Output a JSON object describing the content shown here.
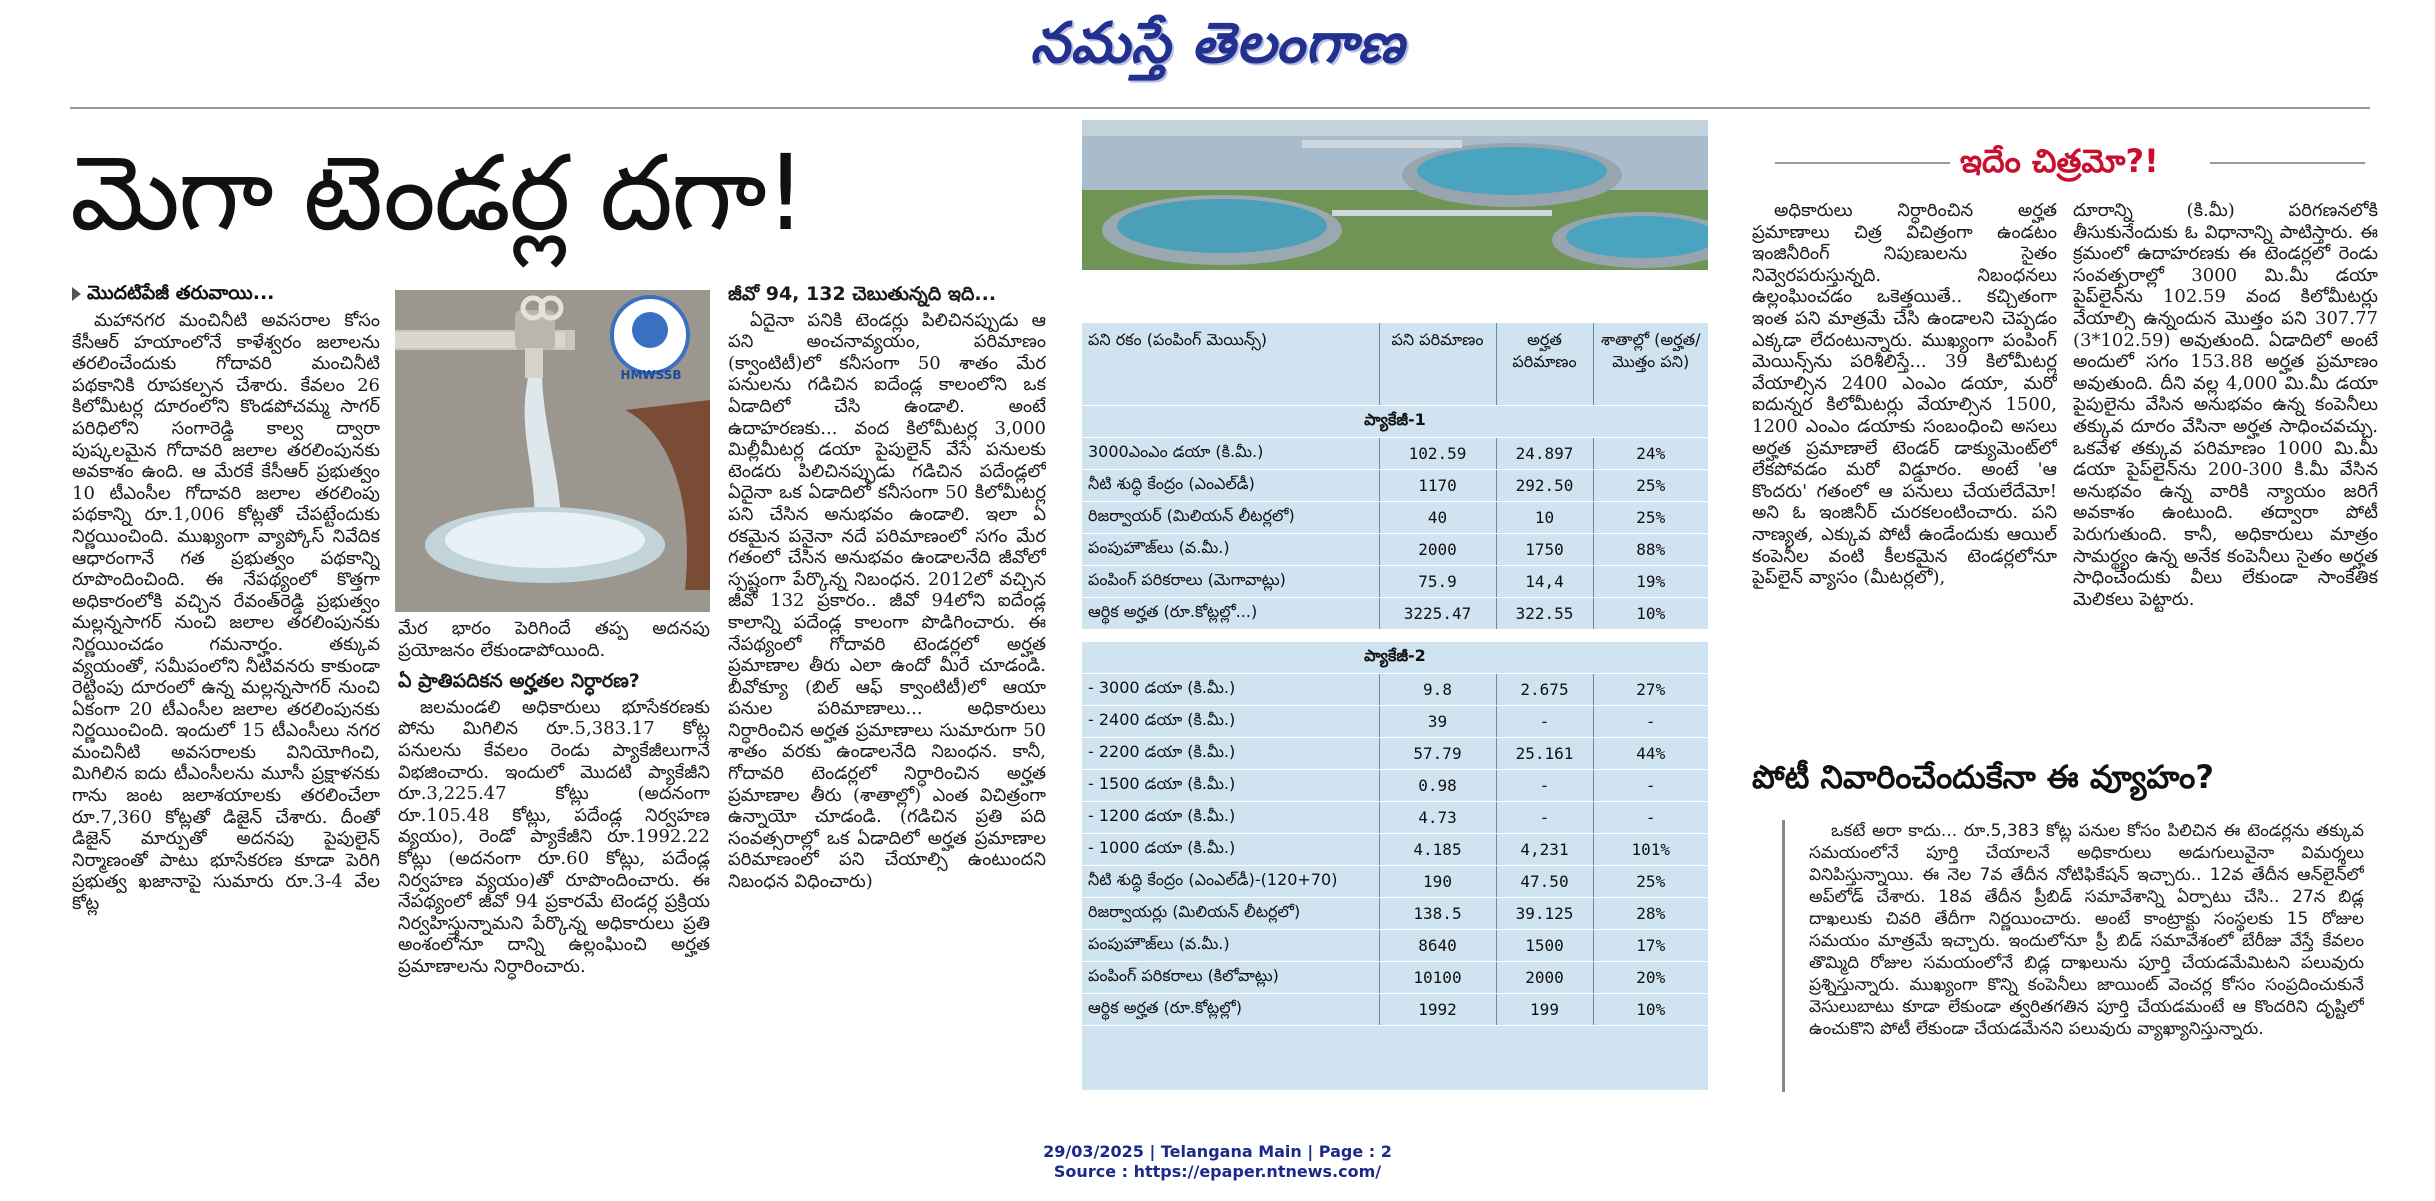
{
  "masthead": "నమస్తే తెలంగాణ",
  "headline": "మెగా టెండర్ల దగా!",
  "lead": {
    "subhead": "మొదటిపేజీ తరువాయి...",
    "col1": [
      "మహానగర మంచినీటి అవసరాల కోసం కేసీఆర్ హయాంలోనే కాళేశ్వరం జలాలను తరలించేందుకు గోదావరి మంచినీటి పథకానికి రూపకల్పన చేశారు. కేవలం 26 కిలోమీటర్ల దూరంలోని కొండపోచమ్మ సాగర్ పరిధిలోని సంగారెడ్డి కాల్వ ద్వారా పుష్కలమైన గోదావరి జలాల తరలింపునకు అవకాశం ఉంది. ఆ మేరకే కేసీఆర్ ప్రభుత్వం 10 టీఎంసీల గోదావరి జలాల తరలింపు పథకాన్ని రూ.1,006 కోట్లతో చేపట్టేందుకు నిర్ణయించింది. ముఖ్యంగా వ్యాప్కోస్ నివేదిక ఆధారంగానే గత ప్రభుత్వం పథకాన్ని రూపొందించింది. ఈ నేపథ్యంలో కొత్తగా అధికారంలోకి వచ్చిన రేవంత్‌రెడ్డి ప్రభుత్వం మల్లన్నసాగర్ నుంచి జలాల తరలింపునకు నిర్ణయించడం గమనార్హం. తక్కువ వ్యయంతో, సమీపంలోని నీటివనరు కాకుండా రెట్టింపు దూరంలో ఉన్న మల్లన్నసాగర్ నుంచి ఏకంగా 20 టీఎంసీల జలాల తరలింపునకు నిర్ణయించింది. ఇందులో 15 టీఎంసీలు నగర మంచినీటి అవసరాలకు వినియోగించి, మిగిలిన ఐదు టీఎంసీలను మూసీ ప్రక్షాళనకు గాను జంట జలాశయాలకు తరలించేలా రూ.7,360 కోట్లతో డిజైన్ చేశారు. దీంతో డిజైన్ మార్పుతో అదనపు పైపులైన్ నిర్మాణంతో పాటు భూసేకరణ కూడా పెరిగి ప్రభుత్వ ఖజానాపై సుమారు రూ.3-4 వేల కోట్ల"
    ],
    "photo_logo": "HMWSSB",
    "col2_top": "మేర భారం పెరిగిందే తప్ప అదనపు ప్రయోజనం లేకుండాపోయింది.",
    "col2_heading": "ఏ ప్రాతిపదికన అర్హతల నిర్ధారణ?",
    "col2_body": "జలమండలి అధికారులు భూసేకరణకు పోను మిగిలిన రూ.5,383.17 కోట్ల పనులను కేవలం రెండు ప్యాకేజీలుగానే విభజించారు. ఇందులో మొదటి ప్యాకేజీని రూ.3,225.47 కోట్లు (అదనంగా రూ.105.48 కోట్లు, పదేండ్ల నిర్వహణ వ్యయం), రెండో ప్యాకేజీని రూ.1992.22 కోట్లు (అదనంగా రూ.60 కోట్లు, పదేండ్ల నిర్వహణ వ్యయం)తో రూపొందించారు. ఈ నేపథ్యంలో జీవో 94 ప్రకారమే టెండర్ల ప్రక్రియ నిర్వహిస్తున్నామని పేర్కొన్న అధికారులు ప్రతి అంశంలోనూ దాన్ని ఉల్లంఘించి అర్హత ప్రమాణాలను నిర్ధారించారు.",
    "col3_heading": "జీవో 94, 132 చెబుతున్నది ఇది...",
    "col3_body": "ఏదైనా పనికి టెండర్లు పిలిచినప్పుడు ఆ పని అంచనావ్యయం, పరిమాణం (క్వాంటిటీ)లో కనీసంగా 50 శాతం మేర పనులను గడిచిన ఐదేండ్ల కాలంలోని ఒక ఏడాదిలో చేసి ఉండాలి. అంటే ఉదాహరణకు... వంద కిలోమీటర్ల 3,000 మిల్లీమీటర్ల డయా పైపులైన్ వేసే పనులకు టెండరు పిలిచినప్పుడు గడిచిన పదేండ్లలో ఏదైనా ఒక ఏడాదిలో కనీసంగా 50 కిలోమీటర్ల పని చేసిన అనుభవం ఉండాలి. ఇలా ఏ రకమైన పనైనా నదే పరిమాణంలో సగం మేర గతంలో చేసిన అనుభవం ఉండాలనేది జీవోలో స్పష్టంగా పేర్కొన్న నిబంధన. 2012లో వచ్చిన జీవో 132 ప్రకారం.. జీవో 94లోని ఐదేండ్ల కాలాన్ని పదేండ్ల కాలంగా పొడిగించారు. ఈ నేపథ్యంలో గోదావరి టెండర్లలో అర్హత ప్రమాణాల తీరు ఎలా ఉందో మీరే చూడండి. బీవోక్యూ (బిల్ ఆఫ్ క్వాంటిటీ)లో ఆయా పనుల పరిమాణాలు... అధికారులు నిర్ధారించిన అర్హత ప్రమాణాలు సుమారుగా 50 శాతం వరకు ఉండాలనేది నిబంధన. కానీ, గోదావరి టెండర్లలో నిర్ధారించిన అర్హత ప్రమాణాల తీరు (శాతాల్లో) ఎంత విచిత్రంగా ఉన్నాయో చూడండి. (గడిచిన ప్రతి పది సంవత్సరాల్లో ఒక ఏడాదిలో అర్హత ప్రమాణాల పరిమాణంలో పని చేయాల్సి ఉంటుందని నిబంధన విధించారు)"
  },
  "table": {
    "headers": [
      "పని రకం (పంపింగ్ మెయిన్స్)",
      "పని పరిమాణం",
      "అర్హత పరిమాణం",
      "శాతాల్లో (అర్హత/మొత్తం పని)"
    ],
    "package1": {
      "title": "ప్యాకేజీ-1",
      "rows": [
        [
          "3000ఎంఎం డయా (కి.మీ.)",
          "102.59",
          "24.897",
          "24%"
        ],
        [
          "నీటి శుద్ధి కేంద్రం (ఎంఎల్‌డీ)",
          "1170",
          "292.50",
          "25%"
        ],
        [
          "రిజర్వాయర్ (మిలియన్ లీటర్లలో)",
          "40",
          "10",
          "25%"
        ],
        [
          "పంపుహౌజ్‌లు (వ.మీ.)",
          "2000",
          "1750",
          "88%"
        ],
        [
          "పంపింగ్ పరికరాలు (మెగావాట్లు)",
          "75.9",
          "14,4",
          "19%"
        ],
        [
          "ఆర్థిక అర్హత (రూ.కోట్లల్లో...)",
          "3225.47",
          "322.55",
          "10%"
        ]
      ]
    },
    "package2": {
      "title": "ప్యాకేజీ-2",
      "rows": [
        [
          "- 3000 డయా (కి.మీ.)",
          "9.8",
          "2.675",
          "27%"
        ],
        [
          "- 2400 డయా (కి.మీ.)",
          "39",
          "-",
          "-"
        ],
        [
          "- 2200 డయా (కి.మీ.)",
          "57.79",
          "25.161",
          "44%"
        ],
        [
          "- 1500 డయా (కి.మీ.)",
          "0.98",
          "-",
          "-"
        ],
        [
          "- 1200 డయా (కి.మీ.)",
          "4.73",
          "-",
          "-"
        ],
        [
          "- 1000 డయా (కి.మీ.)",
          "4.185",
          "4,231",
          "101%"
        ],
        [
          "నీటి శుద్ధి కేంద్రం (ఎంఎల్‌డీ)-(120+70)",
          "190",
          "47.50",
          "25%"
        ],
        [
          "రిజర్వాయర్లు (మిలియన్ లీటర్లలో)",
          "138.5",
          "39.125",
          "28%"
        ],
        [
          "పంపుహౌజ్‌లు (వ.మీ.)",
          "8640",
          "1500",
          "17%"
        ],
        [
          "పంపింగ్ పరికరాలు (కిలోవాట్లు)",
          "10100",
          "2000",
          "20%"
        ],
        [
          "ఆర్థిక అర్హత (రూ.కోట్లల్లో)",
          "1992",
          "199",
          "10%"
        ]
      ]
    }
  },
  "sidebar": {
    "title": "ఇదేం చిత్రమో?!",
    "col1": "అధికారులు నిర్ధారించిన అర్హత ప్రమాణాలు చిత్ర విచిత్రంగా ఉండటం ఇంజినీరింగ్ నిపుణులను సైతం నివ్వెరపరుస్తున్నది. నిబంధనలు ఉల్లంఘించడం ఒకెత్తయితే.. కచ్చితంగా ఇంత పని మాత్రమే చేసి ఉండాలని చెప్పడం ఎక్కడా లేదంటున్నారు. ముఖ్యంగా పంపింగ్ మెయిన్స్‌ను పరిశీలిస్తే... 39 కిలోమీటర్ల వేయాల్సిన 2400 ఎంఎం డయా, మరో ఐదున్నర కిలోమీటర్లు వేయాల్సిన 1500, 1200 ఎంఎం డయాకు సంబంధించి అసలు అర్హత ప్రమాణాలే టెండర్ డాక్యుమెంట్‌లో లేకపోవడం మరో విడ్డూరం. అంటే 'ఆ కొందరు' గతంలో ఆ పనులు చేయలేదేమో! అని ఓ ఇంజినీర్ చురకలంటించారు. పని నాణ్యత, ఎక్కువ పోటీ ఉండేందుకు ఆయిల్ కంపెనీల వంటి కీలకమైన టెండర్లలోనూ పైప్‌లైన్ వ్యాసం (మీటర్లలో),",
    "col2": "దూరాన్ని (కి.మీ) పరిగణనలోకి తీసుకునేందుకు ఓ విధానాన్ని పాటిస్తారు. ఈ క్రమంలో ఉదాహరణకు ఈ టెండర్లలో రెండు సంవత్సరాల్లో 3000 మి.మీ డయా పైప్‌లైన్‌ను 102.59 వంద కిలోమీటర్లు వేయాల్సి ఉన్నందున మొత్తం పని 307.77 (3*102.59) అవుతుంది. ఏడాదిలో అంటే అందులో సగం 153.88 అర్హత ప్రమాణం అవుతుంది. దీని వల్ల 4,000 మి.మీ డయా పైపులైను వేసిన అనుభవం ఉన్న కంపెనీలు తక్కువ దూరం వేసినా అర్హత సాధించవచ్చు. ఒకవేళ తక్కువ పరిమాణం 1000 మి.మీ డయా పైప్‌లైన్‌ను 200-300 కి.మీ వేసిన అనుభవం ఉన్న వారికి న్యాయం జరిగే అవకాశం ఉంటుంది. తద్వారా పోటీ పెరుగుతుంది. కానీ, అధికారులు మాత్రం సామర్థ్యం ఉన్న అనేక కంపెనీలు సైతం అర్హత సాధించేందుకు వీలు లేకుండా సాంకేతిక మెలికలు పెట్టారు."
  },
  "box2": {
    "title": "పోటీ నివారించేందుకేనా ఈ వ్యూహం?",
    "body": "ఒకటే అరా కాదు... రూ.5,383 కోట్ల పనుల కోసం పిలిచిన ఈ టెండర్లను తక్కువ సమయంలోనే పూర్తి చేయాలనే అధికారులు అడుగులువైనా విమర్శలు వినిపిస్తున్నాయి. ఈ నెల 7వ తేదీన నోటిఫికేషన్ ఇచ్చారు.. 12వ తేదీన ఆన్‌లైన్‌లో అప్‌లోడ్ చేశారు. 18వ తేదీన ప్రీబిడ్ సమావేశాన్ని ఏర్పాటు చేసి.. 27న బిడ్ల దాఖలుకు చివరి తేదీగా నిర్ణయించారు. అంటే కాంట్రాక్టు సంస్థలకు 15 రోజుల సమయం మాత్రమే ఇచ్చారు. ఇందులోనూ ప్రీ బిడ్ సమావేశంలో బేరీజు వేస్తే కేవలం తొమ్మిది రోజుల సమయంలోనే బిడ్ల దాఖలును పూర్తి చేయడమేమిటని పలువురు ప్రశ్నిస్తున్నారు. ముఖ్యంగా కొన్ని కంపెనీలు జాయింట్ వెంచర్ల కోసం సంప్రదించుకునే వెసులుబాటు కూడా లేకుండా త్వరితగతిన పూర్తి చేయడమంటే ఆ కొందరిని దృష్టిలో ఉంచుకొని పోటీ లేకుండా చేయడమేనని పలువురు వ్యాఖ్యానిస్తున్నారు."
  },
  "footer": {
    "line1": "29/03/2025 | Telangana Main | Page : 2",
    "line2": "Source : https://epaper.ntnews.com/"
  },
  "colors": {
    "masthead": "#23318e",
    "sidebar_title": "#c8102e",
    "table_bg": "#cfe3f1",
    "footer": "#1b2a8a"
  }
}
